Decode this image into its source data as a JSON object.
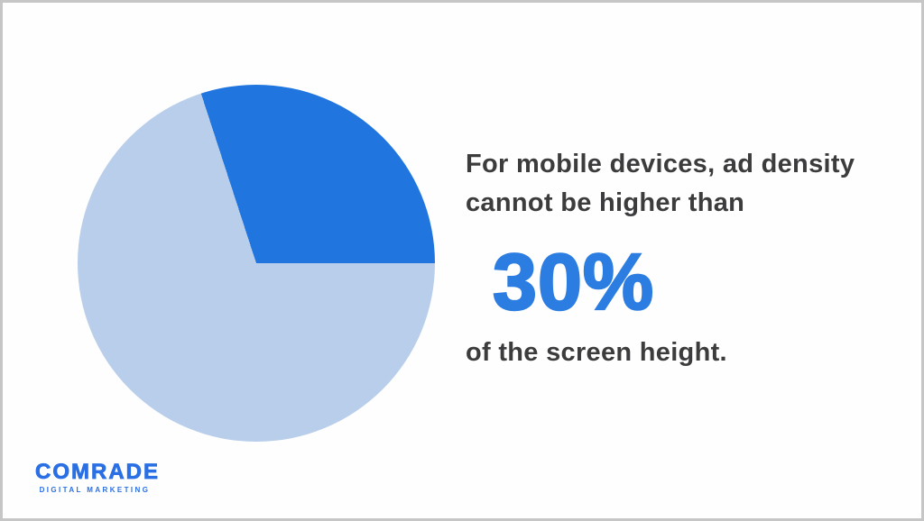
{
  "page": {
    "background": "#fefefe",
    "frame_border_color": "#c6c6c6"
  },
  "chart_data": {
    "type": "pie",
    "title": "",
    "legend_position": "none",
    "labels_visible": false,
    "start_angle_deg": -18,
    "slices": [
      {
        "name": "mobile-ad-density-limit",
        "value": 30,
        "color": "#2076de"
      },
      {
        "name": "remaining-screen-height",
        "value": 70,
        "color": "#b8ceea"
      }
    ]
  },
  "statement": {
    "line1": "For mobile devices, ad density",
    "line2": "cannot be higher than",
    "value": "30%",
    "line3": "of the screen height.",
    "text_color": "#3c3c3e",
    "value_color": "#2c7de1"
  },
  "logo": {
    "name": "COMRADE",
    "tagline": "DIGITAL MARKETING",
    "color": "#2a6fe4"
  }
}
